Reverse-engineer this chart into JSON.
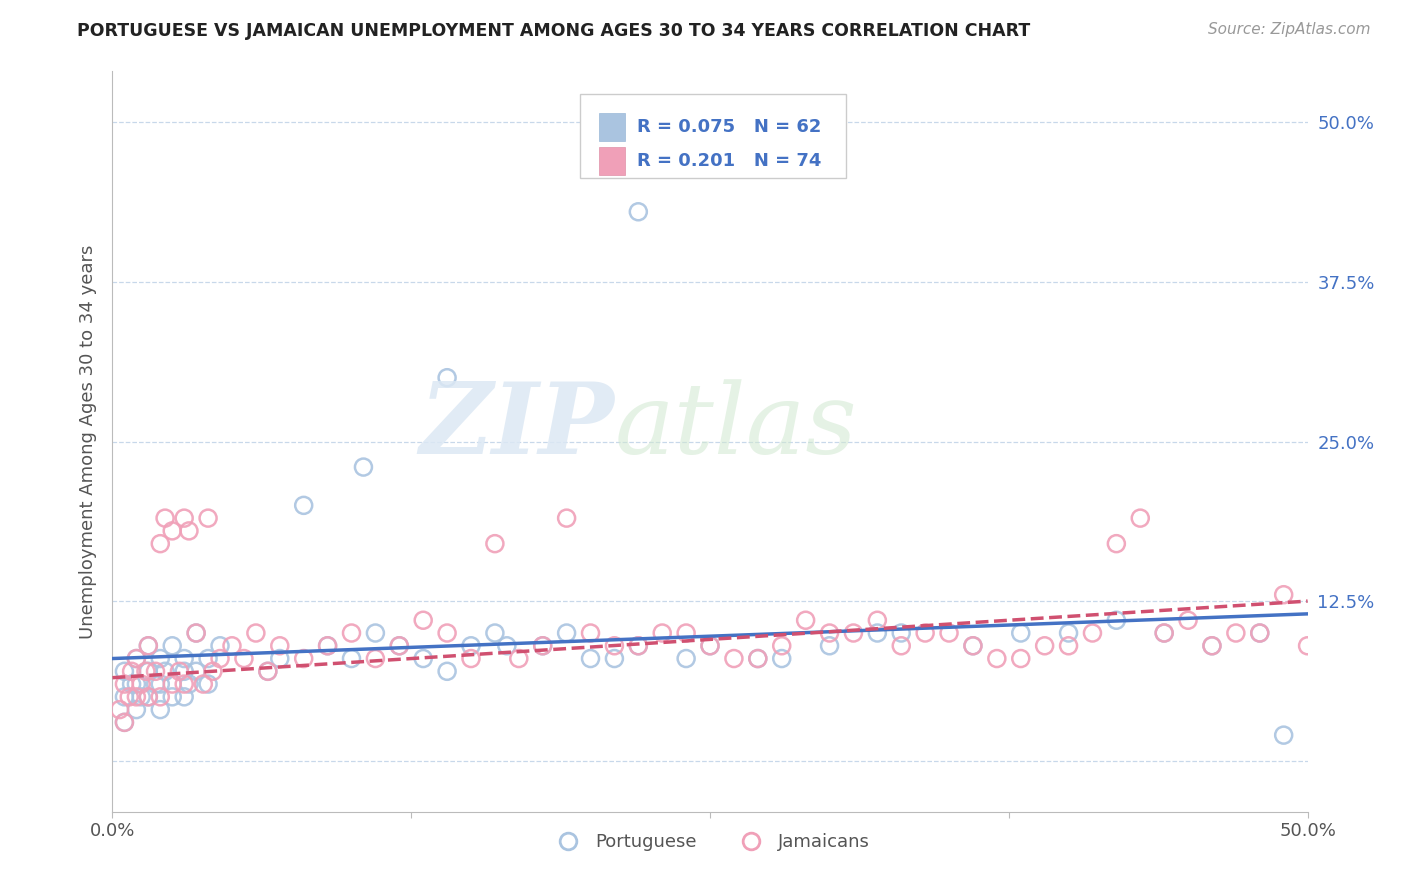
{
  "title": "PORTUGUESE VS JAMAICAN UNEMPLOYMENT AMONG AGES 30 TO 34 YEARS CORRELATION CHART",
  "source": "Source: ZipAtlas.com",
  "ylabel": "Unemployment Among Ages 30 to 34 years",
  "xlim": [
    0.0,
    0.5
  ],
  "ylim": [
    -0.04,
    0.54
  ],
  "legend_label1": "Portuguese",
  "legend_label2": "Jamaicans",
  "r1": 0.075,
  "n1": 62,
  "r2": 0.201,
  "n2": 74,
  "blue_color": "#aac4e0",
  "pink_color": "#f0a0b8",
  "blue_line_color": "#4472c4",
  "pink_line_color": "#d05070",
  "text_color": "#4472c4",
  "background_color": "#ffffff",
  "grid_color": "#c8d8ea",
  "portuguese_x": [
    0.005,
    0.005,
    0.005,
    0.008,
    0.01,
    0.01,
    0.01,
    0.012,
    0.015,
    0.015,
    0.015,
    0.018,
    0.02,
    0.02,
    0.02,
    0.022,
    0.025,
    0.025,
    0.03,
    0.03,
    0.03,
    0.032,
    0.035,
    0.035,
    0.04,
    0.04,
    0.045,
    0.05,
    0.055,
    0.06,
    0.065,
    0.07,
    0.08,
    0.09,
    0.1,
    0.11,
    0.12,
    0.13,
    0.14,
    0.15,
    0.16,
    0.18,
    0.2,
    0.22,
    0.25,
    0.27,
    0.3,
    0.33,
    0.36,
    0.38,
    0.4,
    0.42,
    0.44,
    0.46,
    0.48,
    0.49,
    0.165,
    0.19,
    0.21,
    0.24,
    0.28,
    0.32
  ],
  "portuguese_y": [
    0.05,
    0.03,
    0.07,
    0.06,
    0.04,
    0.08,
    0.06,
    0.05,
    0.07,
    0.05,
    0.09,
    0.06,
    0.04,
    0.08,
    0.06,
    0.07,
    0.05,
    0.09,
    0.07,
    0.05,
    0.08,
    0.06,
    0.1,
    0.07,
    0.08,
    0.06,
    0.09,
    0.3,
    0.08,
    0.23,
    0.07,
    0.08,
    0.2,
    0.09,
    0.08,
    0.1,
    0.09,
    0.08,
    0.07,
    0.09,
    0.1,
    0.09,
    0.08,
    0.09,
    0.09,
    0.08,
    0.09,
    0.1,
    0.09,
    0.1,
    0.1,
    0.11,
    0.1,
    0.09,
    0.1,
    0.02,
    0.09,
    0.1,
    0.08,
    0.08,
    0.08,
    0.1
  ],
  "jamaican_x": [
    0.003,
    0.005,
    0.005,
    0.007,
    0.008,
    0.01,
    0.01,
    0.012,
    0.014,
    0.015,
    0.015,
    0.018,
    0.02,
    0.02,
    0.022,
    0.025,
    0.025,
    0.028,
    0.03,
    0.03,
    0.032,
    0.035,
    0.038,
    0.04,
    0.042,
    0.045,
    0.05,
    0.055,
    0.06,
    0.065,
    0.07,
    0.08,
    0.09,
    0.1,
    0.11,
    0.12,
    0.13,
    0.14,
    0.15,
    0.16,
    0.18,
    0.19,
    0.2,
    0.22,
    0.24,
    0.25,
    0.27,
    0.29,
    0.31,
    0.33,
    0.35,
    0.37,
    0.39,
    0.41,
    0.43,
    0.45,
    0.47,
    0.49,
    0.17,
    0.21,
    0.23,
    0.26,
    0.28,
    0.3,
    0.32,
    0.34,
    0.36,
    0.38,
    0.4,
    0.42,
    0.44,
    0.46,
    0.48,
    0.5
  ],
  "jamaican_y": [
    0.04,
    0.06,
    0.03,
    0.05,
    0.07,
    0.05,
    0.08,
    0.06,
    0.07,
    0.05,
    0.09,
    0.07,
    0.17,
    0.05,
    0.19,
    0.06,
    0.18,
    0.07,
    0.19,
    0.06,
    0.18,
    0.1,
    0.06,
    0.19,
    0.07,
    0.08,
    0.09,
    0.08,
    0.1,
    0.07,
    0.09,
    0.08,
    0.09,
    0.1,
    0.08,
    0.09,
    0.11,
    0.1,
    0.08,
    0.17,
    0.09,
    0.19,
    0.1,
    0.09,
    0.1,
    0.09,
    0.08,
    0.11,
    0.1,
    0.09,
    0.1,
    0.08,
    0.09,
    0.1,
    0.19,
    0.11,
    0.1,
    0.13,
    0.08,
    0.09,
    0.1,
    0.08,
    0.09,
    0.1,
    0.11,
    0.1,
    0.09,
    0.08,
    0.09,
    0.17,
    0.1,
    0.09,
    0.1,
    0.09
  ]
}
